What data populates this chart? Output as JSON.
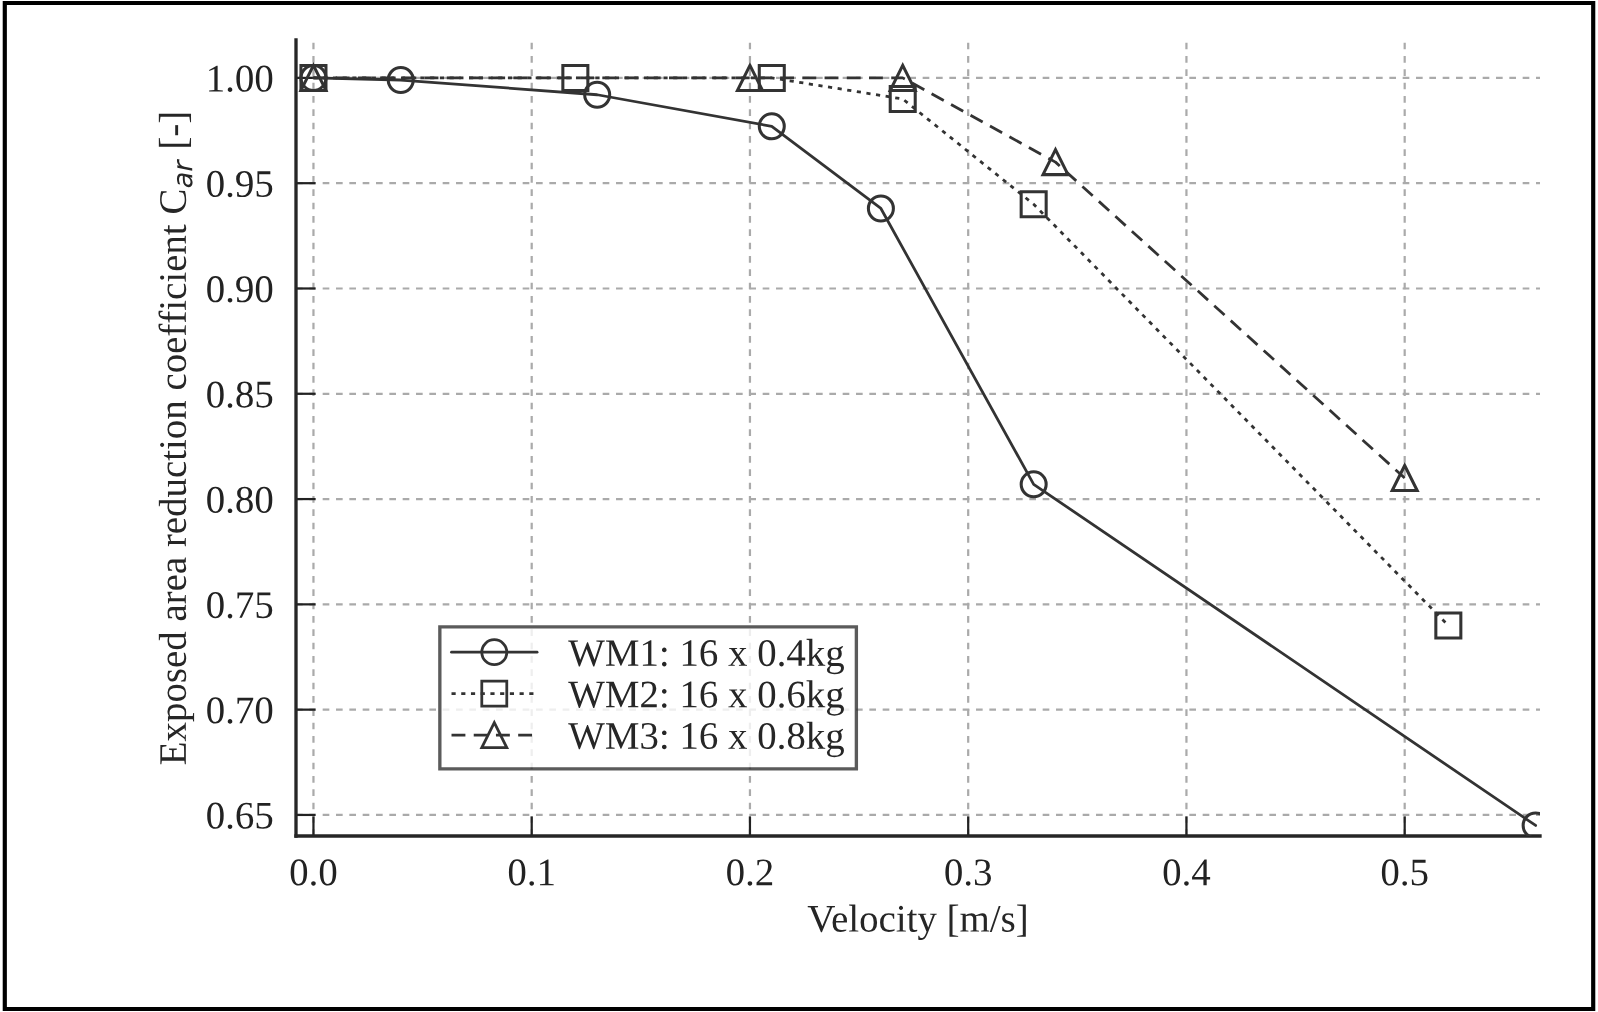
{
  "chart_data": {
    "type": "line",
    "xlabel": "Velocity [m/s]",
    "ylabel": "Exposed area reduction coefficient C$_{ar}$ [-]",
    "xlim": [
      -0.008,
      0.562
    ],
    "ylim": [
      0.64,
      1.018
    ],
    "xticks": [
      {
        "value": 0,
        "label": "0.0"
      },
      0.1,
      0.2,
      0.3,
      0.4,
      0.5
    ],
    "yticks": [
      0.65,
      {
        "value": 0.7,
        "label": "0.70"
      },
      0.75,
      {
        "value": 0.8,
        "label": "0.80"
      },
      0.85,
      {
        "value": 0.9,
        "label": "0.90"
      },
      0.95,
      {
        "value": 1.0,
        "label": "1.00"
      }
    ],
    "grid": true,
    "legend": "bottom left",
    "series": [
      {
        "name": "WM1: 16 x 0.4kg",
        "color": "#333333",
        "marker": "circle",
        "line_style": "solid",
        "x": [
          0,
          0.04,
          0.13,
          0.21,
          0.26,
          0.33,
          0.56
        ],
        "values": [
          1.0,
          0.999,
          0.992,
          0.977,
          0.938,
          0.807,
          0.645
        ]
      },
      {
        "name": "WM2: 16 x 0.6kg",
        "color": "#333333",
        "marker": "square",
        "line_style": "dotted",
        "x": [
          0,
          0.12,
          0.21,
          0.27,
          0.33,
          0.52
        ],
        "values": [
          1.0,
          1.0,
          1.0,
          0.99,
          0.94,
          0.74
        ]
      },
      {
        "name": "WM3: 16 x 0.8kg",
        "color": "#333333",
        "marker": "triangle",
        "line_style": "dashed",
        "x": [
          0,
          0.2,
          0.27,
          0.34,
          0.5
        ],
        "values": [
          1.0,
          1.0,
          1.0,
          0.96,
          0.81
        ]
      }
    ]
  }
}
